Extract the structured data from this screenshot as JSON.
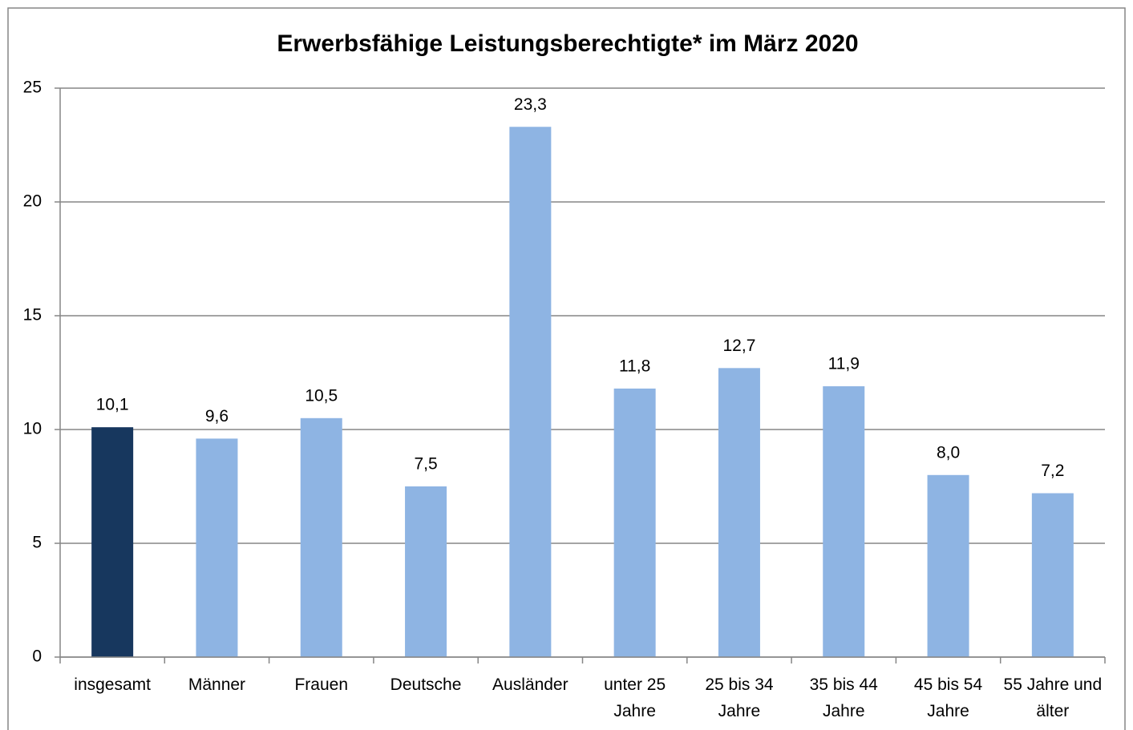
{
  "chart_data": {
    "type": "bar",
    "title": "Erwerbsfähige Leistungsberechtigte* im März 2020",
    "categories": [
      "insgesamt",
      "Männer",
      "Frauen",
      "Deutsche",
      "Ausländer",
      "unter 25 Jahre",
      "25 bis 34 Jahre",
      "35 bis 44 Jahre",
      "45 bis 54 Jahre",
      "55 Jahre und älter"
    ],
    "values": [
      10.1,
      9.6,
      10.5,
      7.5,
      23.3,
      11.8,
      12.7,
      11.9,
      8.0,
      7.2
    ],
    "value_labels": [
      "10,1",
      "9,6",
      "10,5",
      "7,5",
      "23,3",
      "11,8",
      "12,7",
      "11,9",
      "8,0",
      "7,2"
    ],
    "colors": [
      "#17375e",
      "#8eb4e3",
      "#8eb4e3",
      "#8eb4e3",
      "#8eb4e3",
      "#8eb4e3",
      "#8eb4e3",
      "#8eb4e3",
      "#8eb4e3",
      "#8eb4e3"
    ],
    "ylim": [
      0,
      25
    ],
    "yticks": [
      0,
      5,
      10,
      15,
      20,
      25
    ],
    "grid": true
  }
}
